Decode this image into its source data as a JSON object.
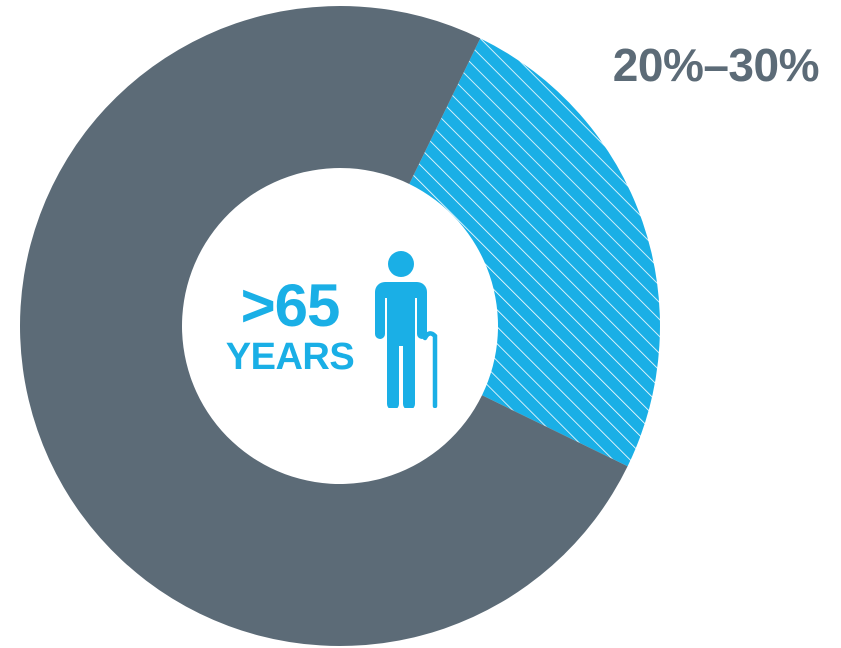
{
  "chart_data": {
    "type": "pie",
    "style": "donut",
    "series": [
      {
        "values": [
          25,
          75
        ],
        "colors": [
          "#1aafe6",
          "#5c6b77"
        ],
        "patterns": [
          "diagonal-stripes",
          "solid"
        ]
      }
    ],
    "annotation": "20%–30%",
    "center": {
      "value": ">65",
      "unit": "YEARS",
      "icon": "elderly-person-with-cane-icon"
    },
    "colors": {
      "highlight": "#1aafe6",
      "remainder": "#5c6b77",
      "annotation_text": "#5c6b77",
      "center_text": "#1aafe6"
    }
  }
}
